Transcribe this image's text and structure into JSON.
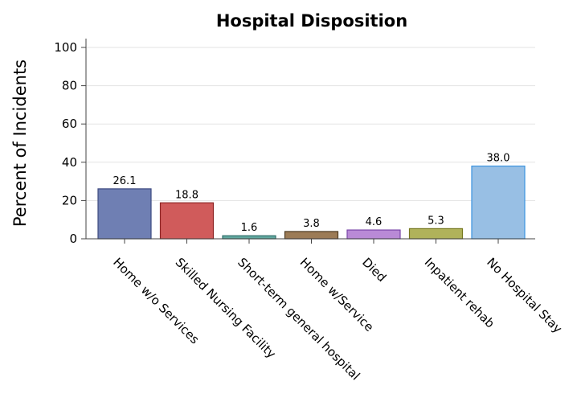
{
  "chart_data": {
    "type": "bar",
    "title": "Hospital Disposition",
    "xlabel": "",
    "ylabel": "Percent of Incidents",
    "ylim": [
      0,
      100
    ],
    "yticks": [
      0,
      20,
      40,
      60,
      80,
      100
    ],
    "grid": true,
    "categories": [
      "Home w/o Services",
      "Skilled Nursing Facility",
      "Short-term general hospital",
      "Home w/Service",
      "Died",
      "Inpatient rehab",
      "No Hospital Stay"
    ],
    "values": [
      26.1,
      18.8,
      1.6,
      3.8,
      4.6,
      5.3,
      38.0
    ],
    "data_labels": [
      "26.1",
      "18.8",
      "1.6",
      "3.8",
      "4.6",
      "5.3",
      "38.0"
    ],
    "colors": [
      "#6f7fb3",
      "#d05b5b",
      "#62a8a0",
      "#9c7b56",
      "#b98ad6",
      "#b0b25a",
      "#98bfe4"
    ],
    "edge_colors": [
      "#3d4a80",
      "#8e2424",
      "#2f6f6a",
      "#4d3a22",
      "#7a48a8",
      "#76781f",
      "#3b94e0"
    ]
  }
}
